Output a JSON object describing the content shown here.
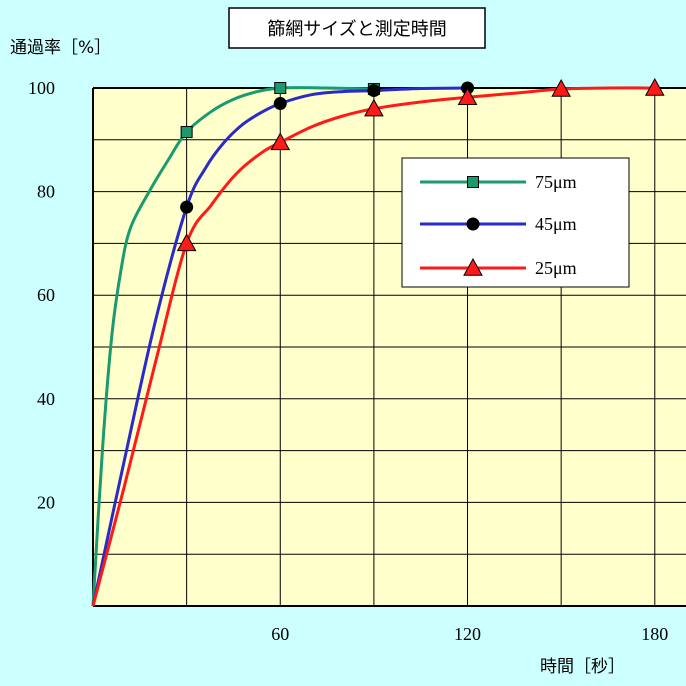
{
  "chart_data": {
    "type": "line",
    "title": "篩網サイズと測定時間",
    "xlabel": "時間［秒］",
    "ylabel": "通過率［%］",
    "xlim": [
      0,
      190
    ],
    "ylim": [
      0,
      100
    ],
    "x_ticks": [
      60,
      120,
      180
    ],
    "y_ticks": [
      20,
      40,
      60,
      80,
      100
    ],
    "grid": true,
    "legend_position": "right",
    "series": [
      {
        "name": "75μm",
        "color": "#1a9a6e",
        "marker": "square",
        "markers": [
          [
            30,
            91.5
          ],
          [
            60,
            100
          ],
          [
            90,
            99.8
          ]
        ],
        "curve": [
          [
            0,
            0
          ],
          [
            3,
            30
          ],
          [
            6,
            52
          ],
          [
            9,
            65
          ],
          [
            12,
            73
          ],
          [
            18,
            80
          ],
          [
            24,
            86
          ],
          [
            30,
            91.5
          ],
          [
            38,
            95.5
          ],
          [
            45,
            97.8
          ],
          [
            52,
            99.2
          ],
          [
            60,
            100
          ],
          [
            75,
            100
          ],
          [
            90,
            99.8
          ]
        ]
      },
      {
        "name": "45μm",
        "color": "#2a2ac8",
        "marker": "circle",
        "markers": [
          [
            30,
            77
          ],
          [
            60,
            97
          ],
          [
            90,
            99.5
          ],
          [
            120,
            100
          ]
        ],
        "curve": [
          [
            0,
            0
          ],
          [
            10,
            28
          ],
          [
            20,
            55
          ],
          [
            30,
            77
          ],
          [
            36,
            84.5
          ],
          [
            42,
            89.5
          ],
          [
            48,
            93
          ],
          [
            54,
            95.3
          ],
          [
            60,
            97
          ],
          [
            70,
            98.7
          ],
          [
            80,
            99.3
          ],
          [
            90,
            99.5
          ],
          [
            105,
            99.9
          ],
          [
            120,
            100
          ]
        ]
      },
      {
        "name": "25μm",
        "color": "#ff1a1a",
        "marker": "triangle",
        "markers": [
          [
            30,
            70
          ],
          [
            60,
            89.5
          ],
          [
            90,
            96
          ],
          [
            120,
            98.2
          ],
          [
            150,
            99.8
          ],
          [
            180,
            100
          ]
        ],
        "curve": [
          [
            0,
            0
          ],
          [
            10,
            23
          ],
          [
            20,
            47
          ],
          [
            30,
            70
          ],
          [
            38,
            77.5
          ],
          [
            46,
            83.5
          ],
          [
            54,
            87.5
          ],
          [
            60,
            89.5
          ],
          [
            70,
            92.5
          ],
          [
            80,
            94.6
          ],
          [
            90,
            96
          ],
          [
            105,
            97.3
          ],
          [
            120,
            98.2
          ],
          [
            135,
            99
          ],
          [
            150,
            99.8
          ],
          [
            165,
            100
          ],
          [
            180,
            100
          ]
        ]
      }
    ]
  }
}
